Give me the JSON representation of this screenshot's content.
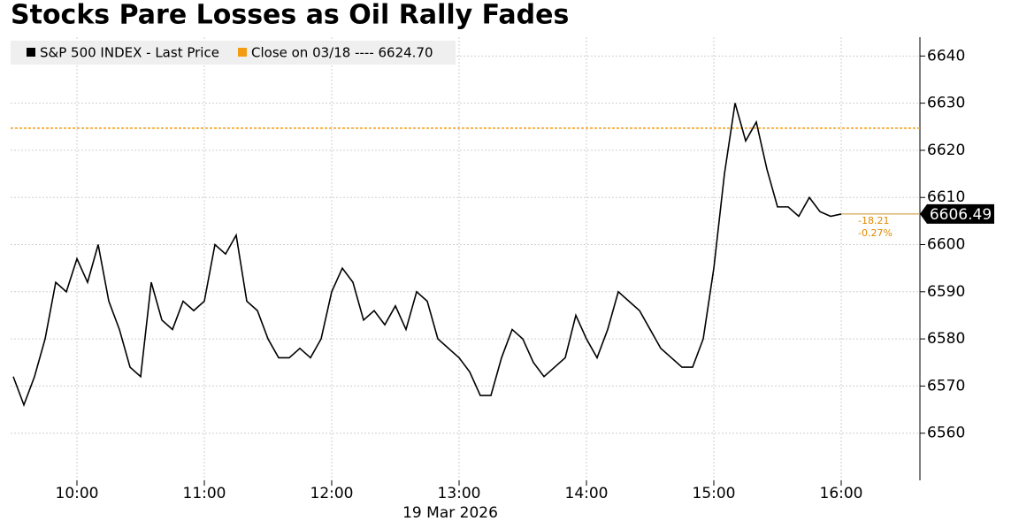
{
  "chart_data": {
    "type": "line",
    "title": "Stocks Pare Losses as Oil Rally Fades",
    "x_label": "19 Mar 2026",
    "categories": [
      "09:30",
      "09:35",
      "09:40",
      "09:45",
      "09:50",
      "09:55",
      "10:00",
      "10:05",
      "10:10",
      "10:15",
      "10:20",
      "10:25",
      "10:30",
      "10:35",
      "10:40",
      "10:45",
      "10:50",
      "10:55",
      "11:00",
      "11:05",
      "11:10",
      "11:15",
      "11:20",
      "11:25",
      "11:30",
      "11:35",
      "11:40",
      "11:45",
      "11:50",
      "11:55",
      "12:00",
      "12:05",
      "12:10",
      "12:15",
      "12:20",
      "12:25",
      "12:30",
      "12:35",
      "12:40",
      "12:45",
      "12:50",
      "12:55",
      "13:00",
      "13:05",
      "13:10",
      "13:15",
      "13:20",
      "13:25",
      "13:30",
      "13:35",
      "13:40",
      "13:45",
      "13:50",
      "13:55",
      "14:00",
      "14:05",
      "14:10",
      "14:15",
      "14:20",
      "14:25",
      "14:30",
      "14:35",
      "14:40",
      "14:45",
      "14:50",
      "14:55",
      "15:00",
      "15:05",
      "15:10",
      "15:15",
      "15:20",
      "15:25",
      "15:30",
      "15:35",
      "15:40",
      "15:45",
      "15:50",
      "15:55",
      "16:00"
    ],
    "xticks": [
      "10:00",
      "11:00",
      "12:00",
      "13:00",
      "14:00",
      "15:00",
      "16:00"
    ],
    "series": [
      {
        "name": "S&P 500 INDEX - Last Price",
        "color": "#000000",
        "values": [
          6572,
          6566,
          6572,
          6580,
          6592,
          6590,
          6597,
          6592,
          6600,
          6588,
          6582,
          6574,
          6572,
          6592,
          6584,
          6582,
          6588,
          6586,
          6588,
          6600,
          6598,
          6602,
          6588,
          6586,
          6580,
          6576,
          6576,
          6578,
          6576,
          6580,
          6590,
          6595,
          6592,
          6584,
          6586,
          6583,
          6587,
          6582,
          6590,
          6588,
          6580,
          6578,
          6576,
          6573,
          6568,
          6568,
          6576,
          6582,
          6580,
          6575,
          6572,
          6574,
          6576,
          6585,
          6580,
          6576,
          6582,
          6590,
          6588,
          6586,
          6582,
          6578,
          6576,
          6574,
          6574,
          6580,
          6595,
          6615,
          6630,
          6622,
          6626,
          6616,
          6608,
          6608,
          6606,
          6610,
          6607,
          6606,
          6606.49
        ]
      }
    ],
    "reference_line": {
      "value": 6624.7,
      "label": "Close on 03/18 ---- 6624.70",
      "color": "#f39c12"
    },
    "last_price_label": "6606.49",
    "change_labels": [
      "-18.21",
      "-0.27%"
    ],
    "ylim": [
      6550,
      6644
    ],
    "yticks": [
      6560,
      6570,
      6580,
      6590,
      6600,
      6610,
      6620,
      6630,
      6640
    ],
    "grid": true
  }
}
